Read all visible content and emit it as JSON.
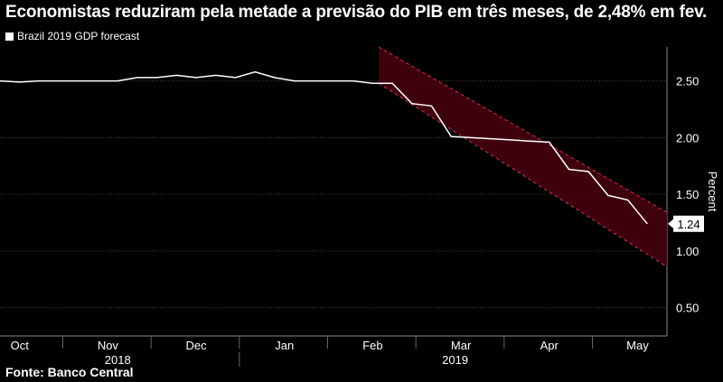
{
  "title": "Economistas reduziram pela metade a previsão do PIB em três meses, de 2,48% em fev.",
  "source": "Fonte: Banco Central",
  "colors": {
    "background": "#000000",
    "line": "#ffffff",
    "band_fill": "#4a0010",
    "band_edge": "#d0304a",
    "grid": "#444444"
  },
  "chart_data": {
    "type": "line",
    "title": "Economistas reduziram pela metade a previsão do PIB em três meses, de 2,48% em fev.",
    "legend": "Brazil 2019 GDP forecast",
    "ylabel": "Percent",
    "xlabel": "",
    "ylim": [
      0.25,
      2.8
    ],
    "yticks": [
      0.5,
      1.0,
      1.5,
      2.0,
      2.5
    ],
    "ytick_labels": [
      "0.50",
      "1.00",
      "1.50",
      "2.00",
      "2.50"
    ],
    "x_range": [
      0,
      34
    ],
    "months": [
      {
        "label": "Oct",
        "x": 1
      },
      {
        "label": "Nov",
        "x": 5.5
      },
      {
        "label": "Dec",
        "x": 10
      },
      {
        "label": "Jan",
        "x": 14.5
      },
      {
        "label": "Feb",
        "x": 19
      },
      {
        "label": "Mar",
        "x": 23.5
      },
      {
        "label": "Apr",
        "x": 28
      },
      {
        "label": "May",
        "x": 32.5
      }
    ],
    "month_separators": [
      3.2,
      7.7,
      12.2,
      16.7,
      21.2,
      25.7,
      30.2
    ],
    "years": [
      {
        "label": "2018",
        "x": 6
      },
      {
        "label": "2019",
        "x": 23.2
      }
    ],
    "year_separator": 12.2,
    "series": [
      {
        "name": "Brazil 2019 GDP forecast",
        "x": [
          0,
          1,
          2,
          3,
          4,
          5,
          6,
          7,
          8,
          9,
          10,
          11,
          12,
          13,
          14,
          15,
          16,
          17,
          18,
          19,
          20,
          21,
          22,
          23,
          24,
          25,
          26,
          27,
          28,
          29,
          30,
          31,
          32,
          33
        ],
        "values": [
          2.5,
          2.49,
          2.5,
          2.5,
          2.5,
          2.5,
          2.5,
          2.53,
          2.53,
          2.55,
          2.53,
          2.55,
          2.53,
          2.58,
          2.53,
          2.5,
          2.5,
          2.5,
          2.5,
          2.48,
          2.48,
          2.3,
          2.28,
          2.01,
          2.0,
          1.99,
          1.98,
          1.97,
          1.96,
          1.72,
          1.7,
          1.49,
          1.45,
          1.24
        ]
      }
    ],
    "last_value_label": "1.24",
    "band": {
      "x_start": 19.3,
      "x_end": 34,
      "upper_start": 2.8,
      "upper_end": 1.34,
      "lower_start": 2.48,
      "lower_end": 0.86
    }
  }
}
